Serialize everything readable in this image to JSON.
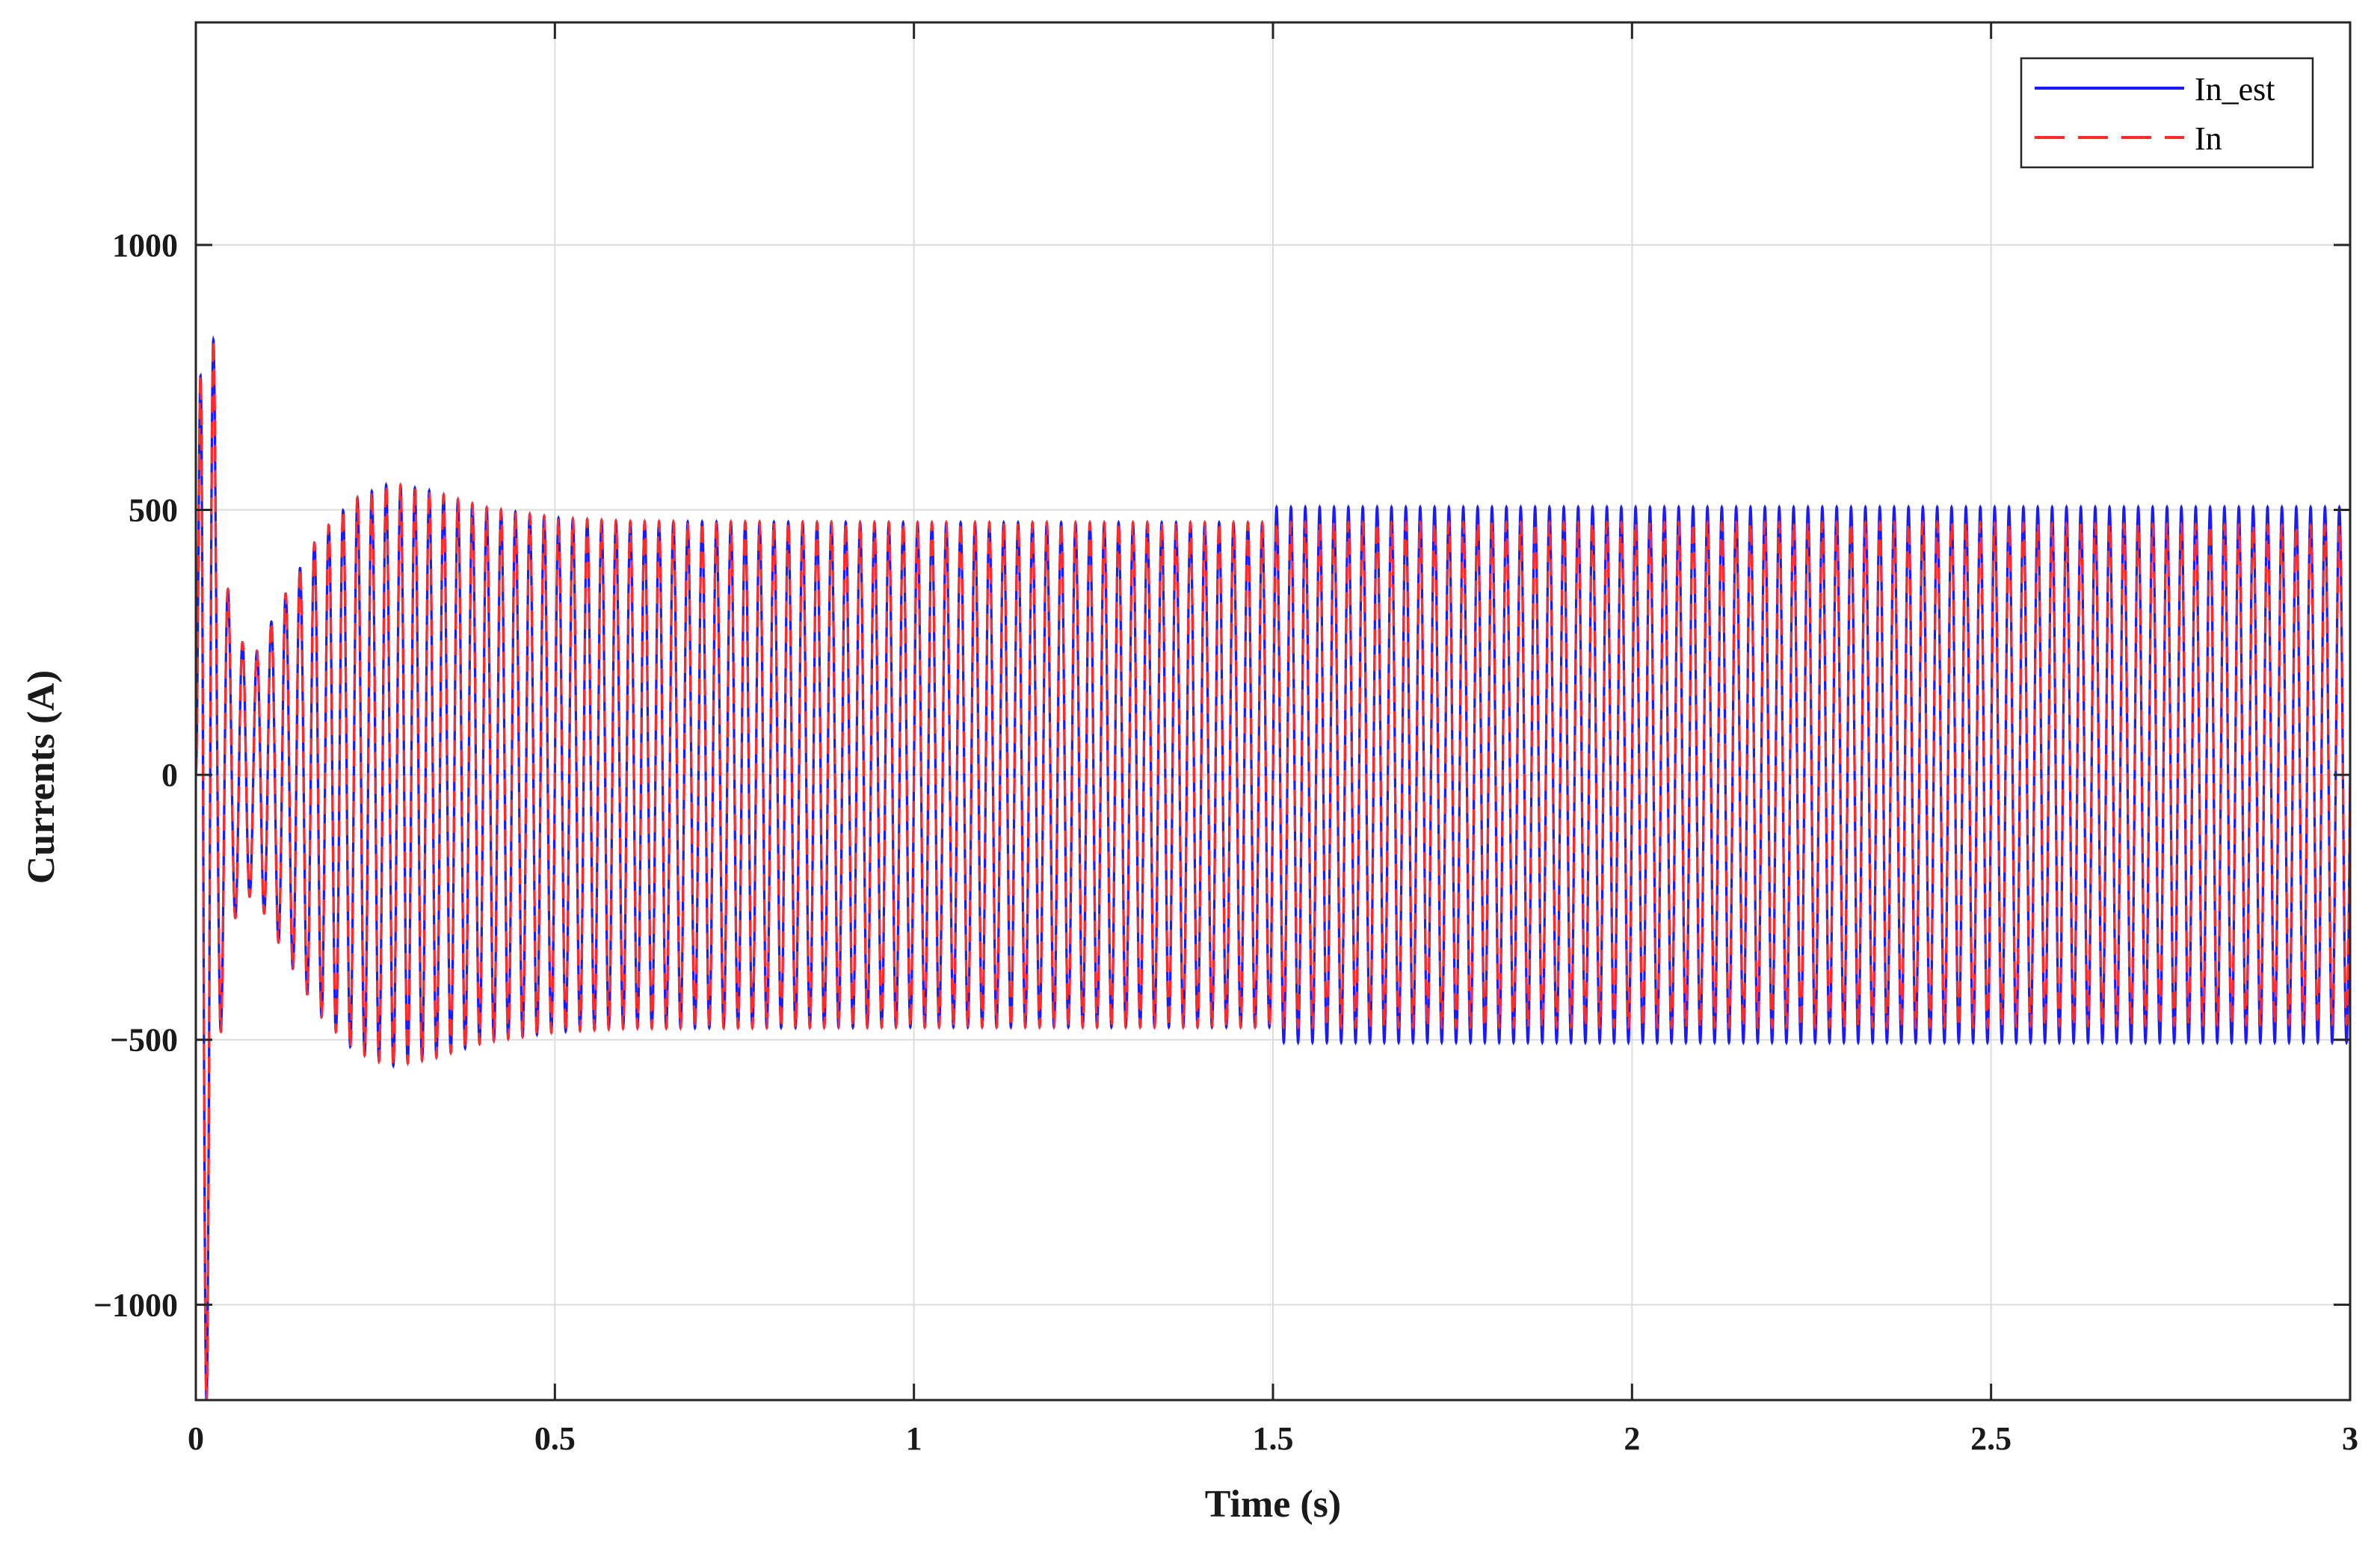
{
  "chart_data": {
    "type": "line",
    "xlabel": "Time (s)",
    "ylabel": "Currents (A)",
    "xlim": [
      0,
      3
    ],
    "ylim": [
      -1180,
      1420
    ],
    "x_ticks": [
      0,
      0.5,
      1,
      1.5,
      2,
      2.5,
      3
    ],
    "x_tick_labels": [
      "0",
      "0.5",
      "1",
      "1.5",
      "2",
      "2.5",
      "3"
    ],
    "y_ticks": [
      -1000,
      -500,
      0,
      500,
      1000
    ],
    "y_tick_labels": [
      "−1000",
      "−500",
      "0",
      "500",
      "1000"
    ],
    "grid": true,
    "legend_position": "top-right",
    "frequency_hz": 50,
    "series": [
      {
        "name": "In_est",
        "color": "#1a1aff",
        "style": "solid",
        "envelope": [
          {
            "t": 0,
            "amp": 0
          },
          {
            "t": 0.01,
            "amp": 1300
          },
          {
            "t": 0.02,
            "amp": 1060
          },
          {
            "t": 0.03,
            "amp": 550
          },
          {
            "t": 0.05,
            "amp": 280
          },
          {
            "t": 0.08,
            "amp": 220
          },
          {
            "t": 0.12,
            "amp": 330
          },
          {
            "t": 0.17,
            "amp": 450
          },
          {
            "t": 0.22,
            "amp": 520
          },
          {
            "t": 0.27,
            "amp": 550
          },
          {
            "t": 0.33,
            "amp": 535
          },
          {
            "t": 0.4,
            "amp": 505
          },
          {
            "t": 0.5,
            "amp": 485
          },
          {
            "t": 0.6,
            "amp": 478
          },
          {
            "t": 1.0,
            "amp": 476
          },
          {
            "t": 1.499,
            "amp": 476
          },
          {
            "t": 1.5,
            "amp": 505
          },
          {
            "t": 2.499,
            "amp": 505
          },
          {
            "t": 2.5,
            "amp": 505
          },
          {
            "t": 3.0,
            "amp": 505
          }
        ]
      },
      {
        "name": "In",
        "color": "#ff2a2a",
        "style": "dashed",
        "envelope": [
          {
            "t": 0,
            "amp": 0
          },
          {
            "t": 0.01,
            "amp": 1300
          },
          {
            "t": 0.02,
            "amp": 1060
          },
          {
            "t": 0.03,
            "amp": 550
          },
          {
            "t": 0.05,
            "amp": 280
          },
          {
            "t": 0.08,
            "amp": 220
          },
          {
            "t": 0.12,
            "amp": 330
          },
          {
            "t": 0.17,
            "amp": 450
          },
          {
            "t": 0.22,
            "amp": 520
          },
          {
            "t": 0.27,
            "amp": 550
          },
          {
            "t": 0.33,
            "amp": 535
          },
          {
            "t": 0.4,
            "amp": 505
          },
          {
            "t": 0.5,
            "amp": 485
          },
          {
            "t": 0.6,
            "amp": 478
          },
          {
            "t": 1.0,
            "amp": 476
          },
          {
            "t": 1.499,
            "amp": 476
          },
          {
            "t": 1.5,
            "amp": 476
          },
          {
            "t": 2.499,
            "amp": 476
          },
          {
            "t": 2.5,
            "amp": 475
          },
          {
            "t": 3.0,
            "amp": 470
          }
        ]
      }
    ]
  }
}
